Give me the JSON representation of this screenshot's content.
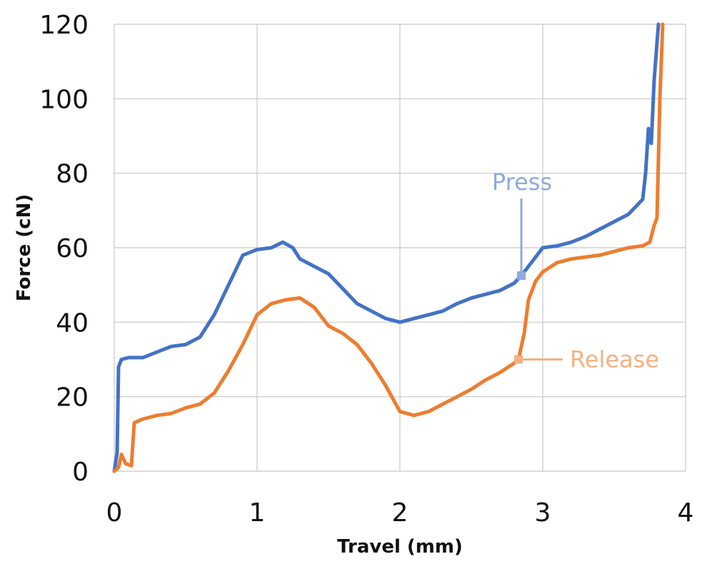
{
  "chart_data": {
    "type": "line",
    "title": "",
    "xlabel": "Travel (mm)",
    "ylabel": "Force (cN)",
    "xlim": [
      0,
      4
    ],
    "ylim": [
      0,
      120
    ],
    "xticks": [
      0,
      1,
      2,
      3,
      4
    ],
    "yticks": [
      0,
      20,
      40,
      60,
      80,
      100,
      120
    ],
    "grid": true,
    "legend": "none",
    "series": [
      {
        "name": "Press",
        "color": "#4472C4",
        "points": [
          [
            0.0,
            0
          ],
          [
            0.02,
            5
          ],
          [
            0.03,
            28
          ],
          [
            0.05,
            30
          ],
          [
            0.1,
            30.5
          ],
          [
            0.2,
            30.5
          ],
          [
            0.3,
            32
          ],
          [
            0.4,
            33.5
          ],
          [
            0.5,
            34
          ],
          [
            0.6,
            36
          ],
          [
            0.7,
            42
          ],
          [
            0.8,
            50
          ],
          [
            0.9,
            58
          ],
          [
            1.0,
            59.5
          ],
          [
            1.1,
            60
          ],
          [
            1.18,
            61.5
          ],
          [
            1.25,
            60
          ],
          [
            1.3,
            57
          ],
          [
            1.4,
            55
          ],
          [
            1.5,
            53
          ],
          [
            1.6,
            49
          ],
          [
            1.7,
            45
          ],
          [
            1.8,
            43
          ],
          [
            1.9,
            41
          ],
          [
            2.0,
            40
          ],
          [
            2.1,
            41
          ],
          [
            2.2,
            42
          ],
          [
            2.3,
            43
          ],
          [
            2.4,
            45
          ],
          [
            2.5,
            46.5
          ],
          [
            2.6,
            47.5
          ],
          [
            2.7,
            48.5
          ],
          [
            2.8,
            50.5
          ],
          [
            2.85,
            52.5
          ],
          [
            2.9,
            55
          ],
          [
            3.0,
            60
          ],
          [
            3.1,
            60.5
          ],
          [
            3.2,
            61.5
          ],
          [
            3.3,
            63
          ],
          [
            3.4,
            65
          ],
          [
            3.5,
            67
          ],
          [
            3.6,
            69
          ],
          [
            3.7,
            73
          ],
          [
            3.72,
            80
          ],
          [
            3.74,
            92
          ],
          [
            3.76,
            88
          ],
          [
            3.78,
            105
          ],
          [
            3.8,
            115
          ],
          [
            3.81,
            120
          ]
        ]
      },
      {
        "name": "Release",
        "color": "#ED7D31",
        "points": [
          [
            0.0,
            0
          ],
          [
            0.03,
            1
          ],
          [
            0.05,
            4.5
          ],
          [
            0.08,
            2
          ],
          [
            0.12,
            1.5
          ],
          [
            0.14,
            13
          ],
          [
            0.2,
            14
          ],
          [
            0.3,
            15
          ],
          [
            0.4,
            15.5
          ],
          [
            0.5,
            17
          ],
          [
            0.6,
            18
          ],
          [
            0.7,
            21
          ],
          [
            0.8,
            27
          ],
          [
            0.9,
            34
          ],
          [
            1.0,
            42
          ],
          [
            1.1,
            45
          ],
          [
            1.2,
            46
          ],
          [
            1.3,
            46.5
          ],
          [
            1.4,
            44
          ],
          [
            1.5,
            39
          ],
          [
            1.6,
            37
          ],
          [
            1.7,
            34
          ],
          [
            1.8,
            29
          ],
          [
            1.9,
            23
          ],
          [
            2.0,
            16
          ],
          [
            2.1,
            15
          ],
          [
            2.2,
            16
          ],
          [
            2.3,
            18
          ],
          [
            2.4,
            20
          ],
          [
            2.5,
            22
          ],
          [
            2.6,
            24.5
          ],
          [
            2.7,
            26.5
          ],
          [
            2.8,
            29
          ],
          [
            2.83,
            30
          ],
          [
            2.87,
            37
          ],
          [
            2.9,
            46
          ],
          [
            2.95,
            51
          ],
          [
            3.0,
            53.5
          ],
          [
            3.1,
            56
          ],
          [
            3.2,
            57
          ],
          [
            3.3,
            57.5
          ],
          [
            3.4,
            58
          ],
          [
            3.5,
            59
          ],
          [
            3.6,
            60
          ],
          [
            3.7,
            60.5
          ],
          [
            3.75,
            61.5
          ],
          [
            3.78,
            66
          ],
          [
            3.8,
            68
          ],
          [
            3.82,
            100
          ],
          [
            3.84,
            120
          ]
        ]
      }
    ],
    "annotations": [
      {
        "text": "Press",
        "series": "Press",
        "at": [
          2.85,
          52.5
        ],
        "color": "#8FAADC"
      },
      {
        "text": "Release",
        "series": "Release",
        "at": [
          2.83,
          30
        ],
        "color": "#F4B183"
      }
    ]
  }
}
